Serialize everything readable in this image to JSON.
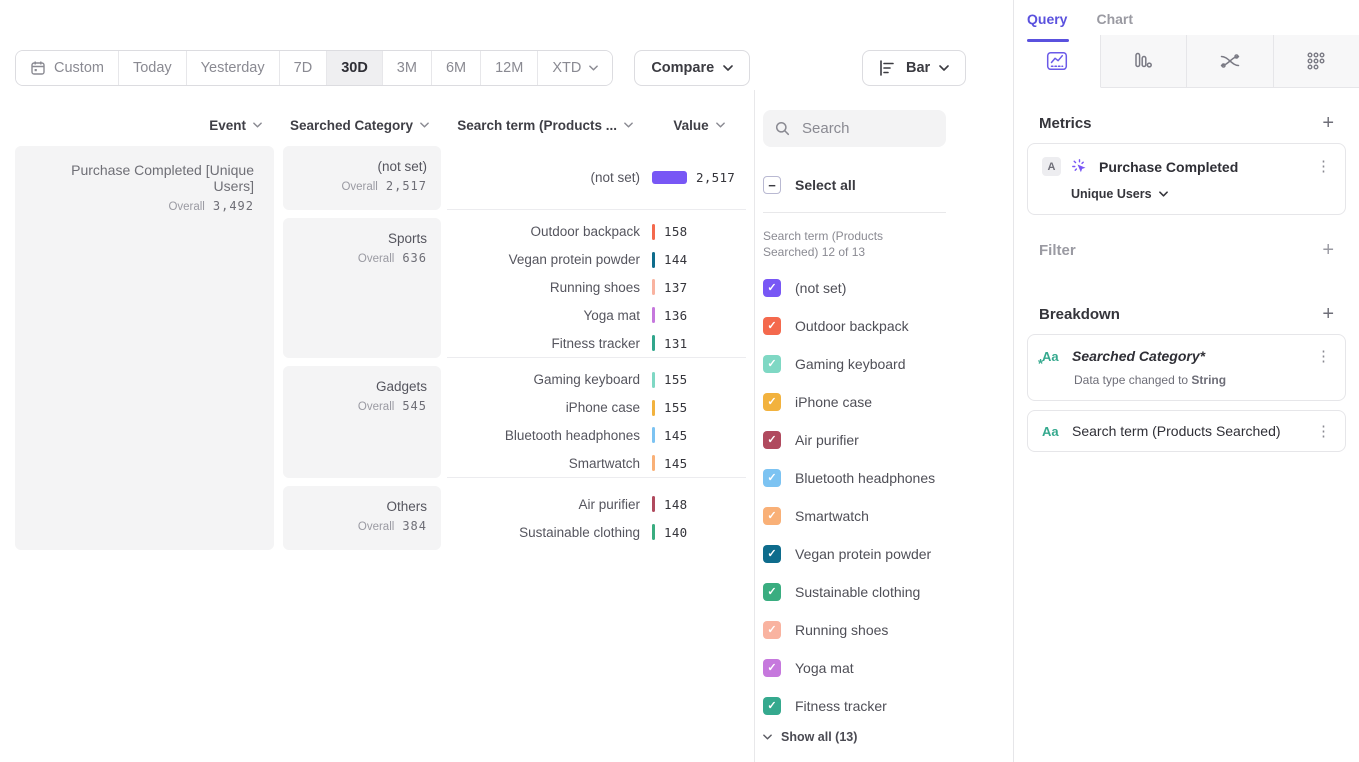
{
  "toolbar": {
    "date_ranges": [
      "Custom",
      "Today",
      "Yesterday",
      "7D",
      "30D",
      "3M",
      "6M",
      "12M",
      "XTD"
    ],
    "selected_range": "30D",
    "compare_label": "Compare",
    "chart_type_label": "Bar"
  },
  "table": {
    "headers": {
      "event": "Event",
      "category": "Searched Category",
      "term": "Search term (Products ...",
      "value": "Value"
    },
    "overall_label": "Overall",
    "event": {
      "name": "Purchase Completed [Unique Users]",
      "overall": "3,492"
    },
    "max_value": 2517,
    "groups": [
      {
        "category": "(not set)",
        "overall": "2,517",
        "rows": [
          {
            "term": "(not set)",
            "value": 2517,
            "display": "2,517",
            "color": "#7857f5"
          }
        ]
      },
      {
        "category": "Sports",
        "overall": "636",
        "rows": [
          {
            "term": "Outdoor backpack",
            "value": 158,
            "display": "158",
            "color": "#f4694d"
          },
          {
            "term": "Vegan protein powder",
            "value": 144,
            "display": "144",
            "color": "#0e6c8c"
          },
          {
            "term": "Running shoes",
            "value": 137,
            "display": "137",
            "color": "#f9b3a0"
          },
          {
            "term": "Yoga mat",
            "value": 136,
            "display": "136",
            "color": "#c678dd"
          },
          {
            "term": "Fitness tracker",
            "value": 131,
            "display": "131",
            "color": "#31a68c"
          }
        ]
      },
      {
        "category": "Gadgets",
        "overall": "545",
        "rows": [
          {
            "term": "Gaming keyboard",
            "value": 155,
            "display": "155",
            "color": "#7fd8c4"
          },
          {
            "term": "iPhone case",
            "value": 155,
            "display": "155",
            "color": "#f2b23e"
          },
          {
            "term": "Bluetooth headphones",
            "value": 145,
            "display": "145",
            "color": "#7cc3f2"
          },
          {
            "term": "Smartwatch",
            "value": 145,
            "display": "145",
            "color": "#f9b077"
          }
        ]
      },
      {
        "category": "Others",
        "overall": "384",
        "rows": [
          {
            "term": "Air purifier",
            "value": 148,
            "display": "148",
            "color": "#b04a5e"
          },
          {
            "term": "Sustainable clothing",
            "value": 140,
            "display": "140",
            "color": "#3aad80"
          }
        ]
      }
    ]
  },
  "filter_panel": {
    "search_placeholder": "Search",
    "select_all_label": "Select all",
    "list_label": "Search term (Products Searched) 12 of 13",
    "items": [
      {
        "label": "(not set)",
        "color": "#7857f5"
      },
      {
        "label": "Outdoor backpack",
        "color": "#f4694d"
      },
      {
        "label": "Gaming keyboard",
        "color": "#7fd8c4"
      },
      {
        "label": "iPhone case",
        "color": "#f2b23e"
      },
      {
        "label": "Air purifier",
        "color": "#b04a5e"
      },
      {
        "label": "Bluetooth headphones",
        "color": "#7cc3f2"
      },
      {
        "label": "Smartwatch",
        "color": "#f9b077"
      },
      {
        "label": "Vegan protein powder",
        "color": "#0e6c8c"
      },
      {
        "label": "Sustainable clothing",
        "color": "#3aad80"
      },
      {
        "label": "Running shoes",
        "color": "#f9b3a0"
      },
      {
        "label": "Yoga mat",
        "color": "#c678dd"
      },
      {
        "label": "Fitness tracker",
        "color": "#35a98e"
      }
    ],
    "show_all_label": "Show all (13)"
  },
  "sidebar": {
    "tabs": [
      {
        "label": "Query",
        "active": true
      },
      {
        "label": "Chart",
        "active": false
      }
    ],
    "icon_tabs": [
      "insights",
      "funnel",
      "flow",
      "retention"
    ],
    "metrics": {
      "title": "Metrics",
      "card": {
        "badge": "A",
        "name": "Purchase Completed",
        "subtitle": "Unique Users"
      }
    },
    "filter": {
      "title": "Filter"
    },
    "breakdown": {
      "title": "Breakdown",
      "cards": [
        {
          "icon": "Aa",
          "name": "Searched Category*",
          "note_prefix": "Data type changed to ",
          "note_bold": "String",
          "modified": true
        },
        {
          "icon": "Aa",
          "name": "Search term (Products Searched)",
          "modified": false
        }
      ]
    }
  },
  "colors": {
    "accent_purple": "#5a51de",
    "bar_purple": "#7857f5",
    "box_gray": "#f4f4f5",
    "border_gray": "#e6e6e9",
    "breakdown_icon_green": "#35a98e"
  }
}
